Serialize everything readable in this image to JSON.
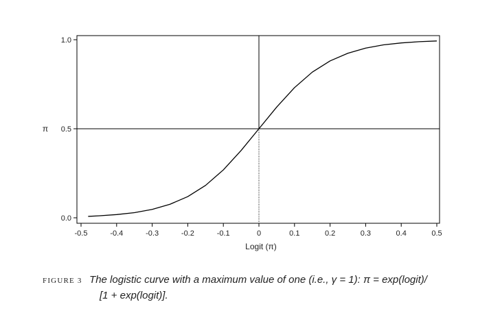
{
  "chart_data": {
    "type": "line",
    "title": "",
    "xlabel": "Logit (π)",
    "ylabel": "π",
    "xlim": [
      -0.5,
      0.5
    ],
    "ylim": [
      0.0,
      1.0
    ],
    "x_ticks": [
      "-0.5",
      "-0.4",
      "-0.3",
      "-0.2",
      "-0.1",
      "0",
      "0.1",
      "0.2",
      "0.3",
      "0.4",
      "0.5"
    ],
    "y_ticks": [
      "0.0",
      "0.5",
      "1.0"
    ],
    "reference_lines": {
      "horizontal": 0.5,
      "vertical": 0
    },
    "curve": {
      "x": [
        -0.48,
        -0.45,
        -0.4,
        -0.35,
        -0.3,
        -0.25,
        -0.2,
        -0.15,
        -0.1,
        -0.05,
        0.0,
        0.05,
        0.1,
        0.15,
        0.2,
        0.25,
        0.3,
        0.35,
        0.4,
        0.45,
        0.5
      ],
      "y": [
        0.008,
        0.011,
        0.018,
        0.029,
        0.047,
        0.076,
        0.119,
        0.182,
        0.269,
        0.378,
        0.5,
        0.622,
        0.731,
        0.818,
        0.881,
        0.924,
        0.953,
        0.971,
        0.982,
        0.989,
        0.993
      ]
    },
    "line_color": "#000000",
    "grid": false
  },
  "caption": {
    "label": "FIGURE 3",
    "line1": "The logistic curve with a maximum value of one (i.e., γ = 1): π = exp(logit)/",
    "line2": "[1 + exp(logit)]."
  }
}
